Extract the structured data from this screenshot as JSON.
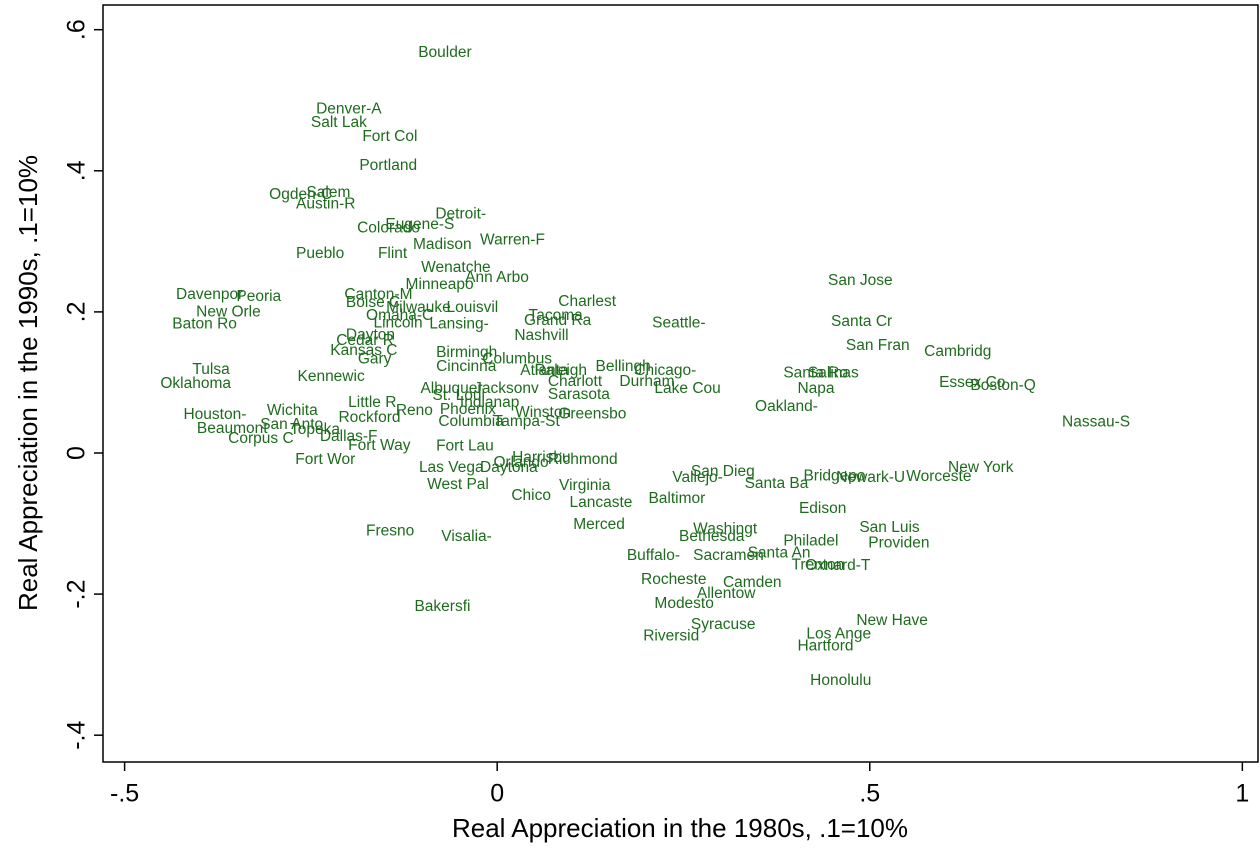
{
  "chart_data": {
    "type": "scatter",
    "x_label": "Real Appreciation in the 1980s, .1=10%",
    "y_label": "Real Appreciation in the 1990s, .1=10%",
    "xlim": [
      -0.529,
      1.021
    ],
    "ylim": [
      -0.438,
      0.635
    ],
    "xticks": [
      {
        "value": -0.5,
        "label": "-.5"
      },
      0,
      {
        "value": 0.5,
        "label": ".5"
      },
      1
    ],
    "yticks": [
      {
        "value": -0.4,
        "label": "-.4"
      },
      {
        "value": -0.2,
        "label": "-.2"
      },
      0,
      {
        "value": 0.2,
        "label": ".2"
      },
      {
        "value": 0.4,
        "label": ".4"
      },
      {
        "value": 0.6,
        "label": ".6"
      }
    ],
    "color": "#1e6b1e",
    "point_labels": [
      "Boulder",
      "Denver-A",
      "Salt Lak",
      "Fort Col",
      "Portland",
      "Salem",
      "Ogden-C",
      "Austin-R",
      "Detroit-",
      "Eugene-S",
      "Colorado",
      "Madison",
      "Warren-F",
      "Pueblo",
      "Flint",
      "Wenatche",
      "Minneapo",
      "Ann Arbo",
      "Davenpor",
      "Peoria",
      "Canton-M",
      "Boise C",
      "Milwauke",
      "Louisvil",
      "Charlest",
      "New Orle",
      "Omaha-C",
      "Tacoma",
      "Baton Ro",
      "Lincoln",
      "Lansing-",
      "Grand Ra",
      "Seattle-",
      "San Jose",
      "Santa Cr",
      "Dayton",
      "Cedar R",
      "Nashvill",
      "San Fran",
      "Cambridg",
      "Kansas C",
      "Gary",
      "Birmingh",
      "Columbus",
      "Cincinna",
      "Atlanta",
      "Raleigh",
      "Bellingh",
      "Chicago-",
      "Tulsa",
      "Oklahoma",
      "Kennewic",
      "Charlott",
      "Durham",
      "Lake Cou",
      "Santa Ro",
      "Salinas",
      "Napa",
      "Essex Co",
      "Boston-Q",
      "Albuquer",
      "Jacksonv",
      "Sarasota",
      "St. Loui",
      "Indianap",
      "Little R",
      "Oakland-",
      "Wichita",
      "Reno",
      "Phoenix",
      "Greensbo",
      "Winston",
      "Houston-",
      "Rockford",
      "Nassau-S",
      "San Anto",
      "Columbia",
      "Tampa-St",
      "Beaumont",
      "Topeka",
      "Corpus C",
      "Dallas-F",
      "Fort Way",
      "Fort Lau",
      "Fort Wor",
      "Harrisbu",
      "Richmond",
      "Orlando",
      "Las Vega",
      "Daytona",
      "New York",
      "San Dieg",
      "Bridgepo",
      "Newark-U",
      "Worceste",
      "Vallejo-",
      "Santa Ba",
      "West Pal",
      "Virginia",
      "Chico",
      "Lancaste",
      "Baltimor",
      "Edison",
      "Merced",
      "Fresno",
      "Visalia-",
      "Washingt",
      "Bethesda",
      "Philadel",
      "San Luis",
      "Providen",
      "Buffalo-",
      "Sacramen",
      "Santa An",
      "Trenton",
      "Oxnard-T",
      "Rocheste",
      "Camden",
      "Allentow",
      "Modesto",
      "Bakersfi",
      "New Have",
      "Syracuse",
      "Los Ange",
      "Riversid",
      "Hartford",
      "Honolulu"
    ],
    "x": [
      -0.106,
      -0.243,
      -0.25,
      -0.181,
      -0.185,
      -0.256,
      -0.306,
      -0.27,
      -0.083,
      -0.15,
      -0.188,
      -0.113,
      -0.023,
      -0.27,
      -0.16,
      -0.102,
      -0.123,
      -0.043,
      -0.431,
      -0.35,
      -0.205,
      -0.203,
      -0.149,
      -0.068,
      0.082,
      -0.404,
      -0.176,
      0.042,
      -0.436,
      -0.166,
      -0.091,
      0.036,
      0.208,
      0.444,
      0.448,
      -0.203,
      -0.216,
      0.023,
      0.468,
      0.573,
      -0.224,
      -0.187,
      -0.082,
      -0.02,
      -0.082,
      0.031,
      0.05,
      0.132,
      0.184,
      -0.409,
      -0.452,
      -0.268,
      0.068,
      0.164,
      0.211,
      0.384,
      0.417,
      0.403,
      0.593,
      0.635,
      -0.103,
      -0.031,
      0.068,
      -0.087,
      -0.05,
      -0.2,
      0.346,
      -0.309,
      -0.136,
      -0.077,
      0.082,
      0.024,
      -0.421,
      -0.213,
      0.758,
      -0.318,
      -0.079,
      -0.005,
      -0.403,
      -0.278,
      -0.361,
      -0.238,
      -0.2,
      -0.082,
      -0.271,
      0.02,
      0.068,
      -0.005,
      -0.105,
      -0.023,
      0.605,
      0.26,
      0.411,
      0.455,
      0.549,
      0.235,
      0.332,
      -0.094,
      0.083,
      0.019,
      0.097,
      0.203,
      0.405,
      0.102,
      -0.176,
      -0.075,
      0.263,
      0.244,
      0.384,
      0.486,
      0.498,
      0.174,
      0.263,
      0.336,
      0.395,
      0.413,
      0.193,
      0.303,
      0.268,
      0.211,
      -0.111,
      0.482,
      0.26,
      0.415,
      0.196,
      0.403,
      0.42
    ],
    "values": [
      0.567,
      0.487,
      0.468,
      0.448,
      0.407,
      0.369,
      0.366,
      0.352,
      0.338,
      0.323,
      0.318,
      0.295,
      0.301,
      0.282,
      0.282,
      0.262,
      0.238,
      0.248,
      0.224,
      0.221,
      0.224,
      0.213,
      0.206,
      0.206,
      0.214,
      0.199,
      0.194,
      0.194,
      0.182,
      0.184,
      0.182,
      0.187,
      0.184,
      0.244,
      0.186,
      0.167,
      0.159,
      0.166,
      0.152,
      0.143,
      0.145,
      0.133,
      0.142,
      0.133,
      0.122,
      0.116,
      0.116,
      0.122,
      0.116,
      0.118,
      0.098,
      0.108,
      0.101,
      0.101,
      0.091,
      0.113,
      0.113,
      0.091,
      0.099,
      0.095,
      0.091,
      0.091,
      0.082,
      0.081,
      0.071,
      0.071,
      0.065,
      0.06,
      0.06,
      0.061,
      0.055,
      0.057,
      0.054,
      0.05,
      0.043,
      0.04,
      0.044,
      0.044,
      0.034,
      0.033,
      0.02,
      0.023,
      0.01,
      0.009,
      -0.01,
      -0.007,
      -0.01,
      -0.014,
      -0.021,
      -0.021,
      -0.021,
      -0.027,
      -0.033,
      -0.035,
      -0.034,
      -0.035,
      -0.044,
      -0.045,
      -0.047,
      -0.061,
      -0.071,
      -0.065,
      -0.079,
      -0.102,
      -0.111,
      -0.119,
      -0.108,
      -0.119,
      -0.125,
      -0.106,
      -0.128,
      -0.146,
      -0.146,
      -0.142,
      -0.159,
      -0.16,
      -0.18,
      -0.184,
      -0.2,
      -0.214,
      -0.218,
      -0.238,
      -0.244,
      -0.257,
      -0.26,
      -0.274,
      -0.323
    ]
  }
}
